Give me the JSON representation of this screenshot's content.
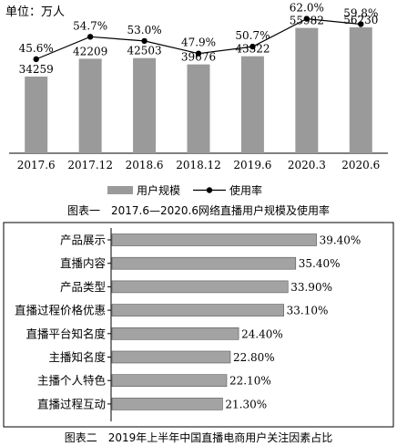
{
  "figure1": {
    "unit_label": "单位：万人",
    "caption": "图表一　2017.6—2020.6网络直播用户规模及使用率",
    "colors": {
      "bar": "#9a9a9a",
      "line": "#000000"
    }
  },
  "figure2": {
    "caption": "图表二　2019年上半年中国直播电商用户关注因素占比",
    "colors": {
      "bar": "#a3a3a3"
    }
  },
  "chart_data": [
    {
      "type": "bar",
      "title": "2017.6—2020.6网络直播用户规模及使用率",
      "ylabel": "单位：万人",
      "categories": [
        "2017.6",
        "2017.12",
        "2018.6",
        "2018.12",
        "2019.6",
        "2020.3",
        "2020.6"
      ],
      "series": [
        {
          "name": "用户规模",
          "type": "bar",
          "values": [
            34259,
            42209,
            42503,
            39676,
            43322,
            55982,
            56230
          ],
          "labels": [
            "34259",
            "42209",
            "42503",
            "39676",
            "43322",
            "55982",
            "56230"
          ]
        },
        {
          "name": "使用率",
          "type": "line",
          "values": [
            45.6,
            54.7,
            53.0,
            47.9,
            50.7,
            62.0,
            59.8
          ],
          "labels": [
            "45.6%",
            "54.7%",
            "53.0%",
            "47.9%",
            "50.7%",
            "62.0%",
            "59.8%"
          ]
        }
      ],
      "legend": "bottom",
      "grid": false
    },
    {
      "type": "bar",
      "orientation": "horizontal",
      "title": "2019年上半年中国直播电商用户关注因素占比",
      "categories": [
        "产品展示",
        "直播内容",
        "产品类型",
        "直播过程价格优惠",
        "直播平台知名度",
        "主播知名度",
        "主播个人特色",
        "直播过程互动"
      ],
      "values": [
        39.4,
        35.4,
        33.9,
        33.1,
        24.4,
        22.8,
        22.1,
        21.3
      ],
      "labels": [
        "39.40%",
        "35.40%",
        "33.90%",
        "33.10%",
        "24.40%",
        "22.80%",
        "22.10%",
        "21.30%"
      ],
      "xlim": [
        0,
        40
      ],
      "grid": false
    }
  ]
}
